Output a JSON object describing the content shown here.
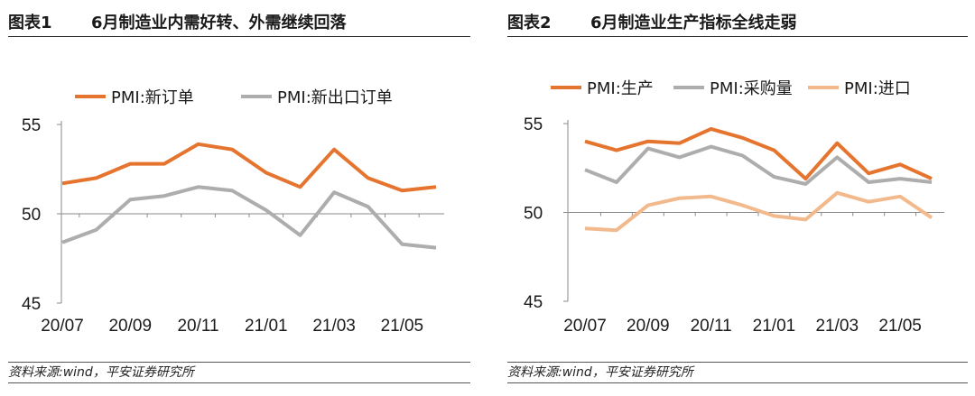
{
  "left": {
    "label": "图表1",
    "title": "6月制造业内需好转、外需继续回落",
    "footer": "资料来源:wind，平安证券研究所"
  },
  "right": {
    "label": "图表2",
    "title": "6月制造业生产指标全线走弱",
    "footer": "资料来源:wind，平安证券研究所"
  },
  "colors": {
    "orange": "#E5742F",
    "gray": "#ADADAD",
    "peach": "#F2B98C"
  },
  "chart_data": [
    {
      "type": "line",
      "title": "6月制造业内需好转、外需继续回落",
      "categories": [
        "20/07",
        "20/08",
        "20/09",
        "20/10",
        "20/11",
        "20/12",
        "21/01",
        "21/02",
        "21/03",
        "21/04",
        "21/05",
        "21/06"
      ],
      "tick_labels": [
        "20/07",
        "20/09",
        "20/11",
        "21/01",
        "21/03",
        "21/05"
      ],
      "yticks": [
        45,
        50,
        55
      ],
      "ylim": [
        45,
        55
      ],
      "baseline": 50,
      "legend_position": "top",
      "series": [
        {
          "name": "PMI:新订单",
          "color": "#E5742F",
          "values": [
            51.7,
            52.0,
            52.8,
            52.8,
            53.9,
            53.6,
            52.3,
            51.5,
            53.6,
            52.0,
            51.3,
            51.5
          ]
        },
        {
          "name": "PMI:新出口订单",
          "color": "#ADADAD",
          "values": [
            48.4,
            49.1,
            50.8,
            51.0,
            51.5,
            51.3,
            50.2,
            48.8,
            51.2,
            50.4,
            48.3,
            48.1
          ]
        }
      ]
    },
    {
      "type": "line",
      "title": "6月制造业生产指标全线走弱",
      "categories": [
        "20/07",
        "20/08",
        "20/09",
        "20/10",
        "20/11",
        "20/12",
        "21/01",
        "21/02",
        "21/03",
        "21/04",
        "21/05",
        "21/06"
      ],
      "tick_labels": [
        "20/07",
        "20/09",
        "20/11",
        "21/01",
        "21/03",
        "21/05"
      ],
      "yticks": [
        45,
        50,
        55
      ],
      "ylim": [
        45,
        55
      ],
      "baseline": 50,
      "legend_position": "top",
      "series": [
        {
          "name": "PMI:生产",
          "color": "#E5742F",
          "values": [
            54.0,
            53.5,
            54.0,
            53.9,
            54.7,
            54.2,
            53.5,
            51.9,
            53.9,
            52.2,
            52.7,
            51.9
          ]
        },
        {
          "name": "PMI:采购量",
          "color": "#ADADAD",
          "values": [
            52.4,
            51.7,
            53.6,
            53.1,
            53.7,
            53.2,
            52.0,
            51.6,
            53.1,
            51.7,
            51.9,
            51.7
          ]
        },
        {
          "name": "PMI:进口",
          "color": "#F2B98C",
          "values": [
            49.1,
            49.0,
            50.4,
            50.8,
            50.9,
            50.4,
            49.8,
            49.6,
            51.1,
            50.6,
            50.9,
            49.7
          ]
        }
      ]
    }
  ]
}
